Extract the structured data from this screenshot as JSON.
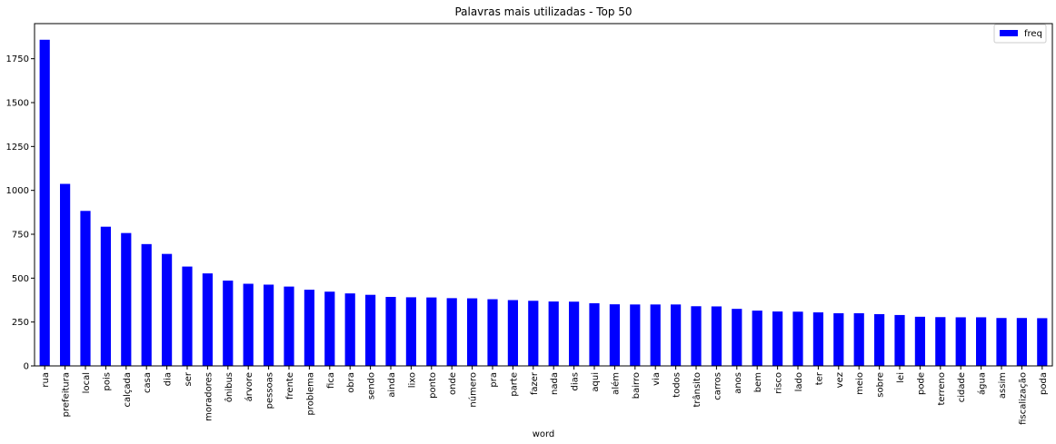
{
  "chart_data": {
    "type": "bar",
    "title": "Palavras mais utilizadas - Top 50",
    "xlabel": "word",
    "ylabel": "",
    "ylim": [
      0,
      1950
    ],
    "yticks": [
      "0",
      "250",
      "500",
      "750",
      "1000",
      "1250",
      "1500",
      "1750"
    ],
    "ytick_values": [
      0,
      250,
      500,
      750,
      1000,
      1250,
      1500,
      1750
    ],
    "categories": [
      "rua",
      "prefeitura",
      "local",
      "pois",
      "calçada",
      "casa",
      "dia",
      "ser",
      "moradores",
      "ônibus",
      "árvore",
      "pessoas",
      "frente",
      "problema",
      "fica",
      "obra",
      "sendo",
      "ainda",
      "lixo",
      "ponto",
      "onde",
      "número",
      "pra",
      "parte",
      "fazer",
      "nada",
      "dias",
      "aqui",
      "além",
      "bairro",
      "via",
      "todos",
      "trânsito",
      "carros",
      "anos",
      "bem",
      "risco",
      "lado",
      "ter",
      "vez",
      "meio",
      "sobre",
      "lei",
      "pode",
      "terreno",
      "cidade",
      "água",
      "assim",
      "fiscalização",
      "poda"
    ],
    "series": [
      {
        "name": "freq",
        "color": "#0000ff",
        "values": [
          1858,
          1037,
          883,
          793,
          757,
          694,
          638,
          566,
          527,
          486,
          468,
          463,
          452,
          434,
          423,
          413,
          405,
          393,
          391,
          390,
          386,
          385,
          380,
          375,
          371,
          367,
          366,
          357,
          351,
          350,
          350,
          350,
          340,
          339,
          325,
          315,
          310,
          309,
          305,
          300,
          300,
          295,
          290,
          280,
          278,
          277,
          277,
          273,
          273,
          272
        ]
      }
    ],
    "legend": {
      "position": "top-right",
      "label": "freq"
    },
    "grid": false
  }
}
